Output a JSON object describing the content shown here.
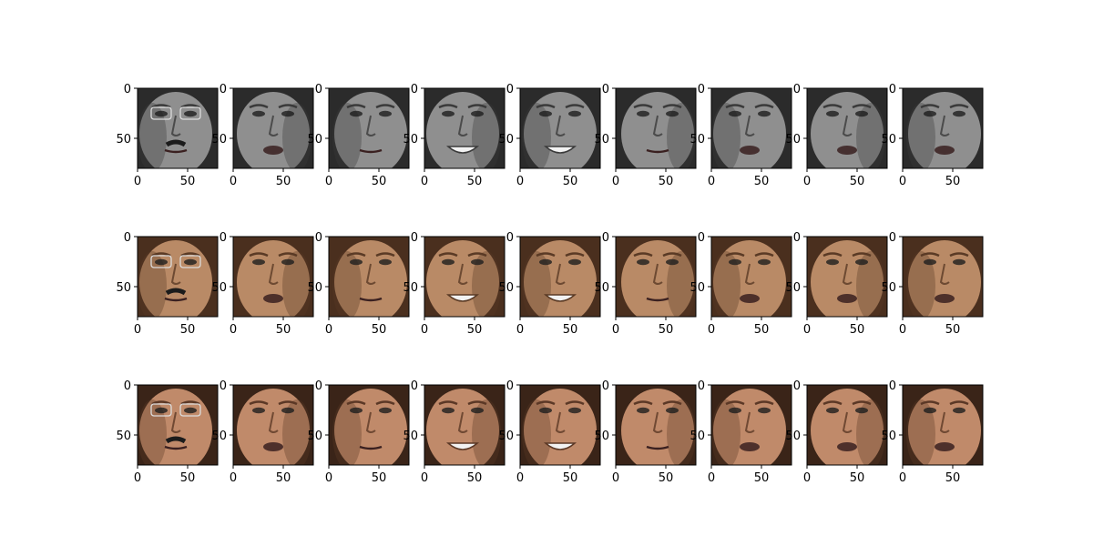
{
  "figure": {
    "rows": [
      "grayscale-input",
      "sepia-colorized",
      "ground-truth-color"
    ],
    "columns": 9,
    "x_ticks": [
      "0",
      "50"
    ],
    "y_ticks": [
      "0",
      "50"
    ],
    "axis_range": [
      0,
      80
    ],
    "row_tints": [
      {
        "skin": "#8f8f8f",
        "shadow": "#3a3a3a",
        "hair": "#2b2b2b"
      },
      {
        "skin": "#b98a66",
        "shadow": "#5a3a25",
        "hair": "#4a2f1e"
      },
      {
        "skin": "#c08a6a",
        "shadow": "#5b3826",
        "hair": "#3a2418"
      }
    ],
    "panel_variants": [
      {
        "face": "male-glasses-mustache"
      },
      {
        "face": "male-dark-side-lit"
      },
      {
        "face": "older-bright-washed"
      },
      {
        "face": "female-smiling"
      },
      {
        "face": "male-older-smiling"
      },
      {
        "face": "male-short-hair"
      },
      {
        "face": "male-side-face"
      },
      {
        "face": "male-open-mouth"
      },
      {
        "face": "female-older-short-hair"
      }
    ]
  }
}
